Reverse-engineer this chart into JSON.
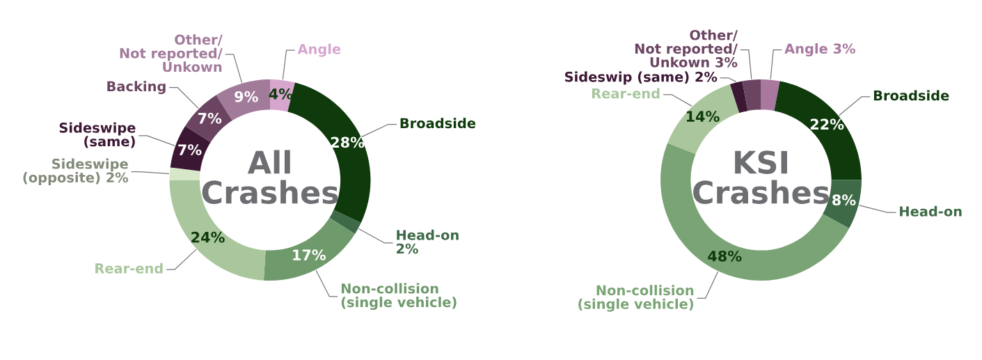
{
  "chart_data": [
    {
      "type": "donut",
      "title": "All\nCrashes",
      "categories": [
        "Angle",
        "Broadside",
        "Head-on\n2%",
        "Non-collision\n(single vehicle)",
        "Rear-end",
        "Sideswipe\n(opposite) 2%",
        "Sideswipe\n(same)",
        "Backing",
        "Other/\nNot reported/\nUnkown"
      ],
      "values": [
        4,
        28,
        2,
        17,
        24,
        2,
        7,
        7,
        9
      ],
      "value_labels": [
        "4%",
        "28%",
        null,
        "17%",
        "24%",
        null,
        "7%",
        "7%",
        "9%"
      ],
      "colors": [
        "#d6a6cf",
        "#0f3a0c",
        "#3e6a47",
        "#6f9a6c",
        "#a9c69d",
        "#d7e8c9",
        "#3c1734",
        "#6b4461",
        "#a27b9b"
      ]
    },
    {
      "type": "donut",
      "title": "KSI\nCrashes",
      "categories": [
        "Angle 3%",
        "Broadside",
        "Head-on",
        "Non-collision\n(single vehicle)",
        "Rear-end",
        "Sideswip (same) 2%",
        "Other/\nNot reported/\nUnkown 3%"
      ],
      "values": [
        3,
        22,
        8,
        48,
        14,
        2,
        3
      ],
      "value_labels": [
        null,
        "22%",
        "8%",
        "48%",
        "14%",
        null,
        null
      ],
      "colors": [
        "#a8789f",
        "#0f3a0c",
        "#3e6a47",
        "#7aa475",
        "#a9c69d",
        "#3c1734",
        "#6b4461"
      ]
    }
  ]
}
